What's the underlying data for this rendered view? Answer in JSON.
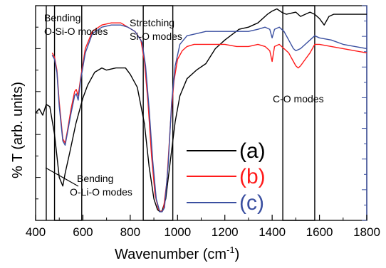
{
  "chart_data": {
    "type": "line",
    "xlabel": "Wavenumber (cm",
    "xlabel_sup": "-1",
    "xlabel_end": ")",
    "ylabel": "% T (arb. units)",
    "xlim": [
      400,
      1800
    ],
    "ylim": [
      0,
      100
    ],
    "x_ticks": [
      "400",
      "600",
      "800",
      "1000",
      "1200",
      "1400",
      "1600",
      "1800"
    ],
    "grid": false,
    "legend_placement": "center-right",
    "series": [
      {
        "name": "(a)",
        "color": "#000000",
        "points": [
          [
            400,
            50
          ],
          [
            415,
            52
          ],
          [
            430,
            49
          ],
          [
            445,
            54
          ],
          [
            460,
            53
          ],
          [
            480,
            40
          ],
          [
            500,
            20
          ],
          [
            515,
            16
          ],
          [
            525,
            22
          ],
          [
            545,
            32
          ],
          [
            570,
            45
          ],
          [
            600,
            57
          ],
          [
            620,
            63
          ],
          [
            650,
            69
          ],
          [
            680,
            71
          ],
          [
            700,
            70
          ],
          [
            740,
            71
          ],
          [
            780,
            71
          ],
          [
            800,
            68
          ],
          [
            830,
            62
          ],
          [
            860,
            45
          ],
          [
            880,
            25
          ],
          [
            900,
            10
          ],
          [
            915,
            5
          ],
          [
            925,
            4
          ],
          [
            935,
            4.5
          ],
          [
            950,
            10
          ],
          [
            970,
            28
          ],
          [
            990,
            46
          ],
          [
            1010,
            58
          ],
          [
            1040,
            66
          ],
          [
            1080,
            70
          ],
          [
            1120,
            73
          ],
          [
            1160,
            80
          ],
          [
            1200,
            84
          ],
          [
            1260,
            89
          ],
          [
            1300,
            90
          ],
          [
            1340,
            92
          ],
          [
            1380,
            96
          ],
          [
            1400,
            97.5
          ],
          [
            1420,
            98.5
          ],
          [
            1440,
            97
          ],
          [
            1460,
            96
          ],
          [
            1480,
            96.5
          ],
          [
            1500,
            97
          ],
          [
            1520,
            95
          ],
          [
            1540,
            96
          ],
          [
            1560,
            97
          ],
          [
            1580,
            96
          ],
          [
            1600,
            94
          ],
          [
            1620,
            91
          ],
          [
            1640,
            95
          ],
          [
            1660,
            96
          ],
          [
            1700,
            96
          ],
          [
            1750,
            96
          ],
          [
            1800,
            96
          ]
        ]
      },
      {
        "name": "(b)",
        "color": "#ff1a1a",
        "points": [
          [
            470,
            78
          ],
          [
            480,
            76
          ],
          [
            490,
            70
          ],
          [
            500,
            55
          ],
          [
            515,
            38
          ],
          [
            525,
            36
          ],
          [
            535,
            42
          ],
          [
            550,
            52
          ],
          [
            565,
            60
          ],
          [
            572,
            61
          ],
          [
            580,
            58
          ],
          [
            590,
            66
          ],
          [
            610,
            80
          ],
          [
            640,
            88
          ],
          [
            680,
            91
          ],
          [
            720,
            92
          ],
          [
            760,
            92
          ],
          [
            790,
            90
          ],
          [
            820,
            88
          ],
          [
            845,
            84
          ],
          [
            860,
            74
          ],
          [
            875,
            55
          ],
          [
            890,
            30
          ],
          [
            905,
            12
          ],
          [
            920,
            5
          ],
          [
            930,
            4
          ],
          [
            940,
            5
          ],
          [
            955,
            18
          ],
          [
            970,
            45
          ],
          [
            985,
            65
          ],
          [
            1000,
            75
          ],
          [
            1020,
            79
          ],
          [
            1040,
            81
          ],
          [
            1070,
            82
          ],
          [
            1100,
            82
          ],
          [
            1150,
            82
          ],
          [
            1200,
            82
          ],
          [
            1250,
            81
          ],
          [
            1300,
            81
          ],
          [
            1340,
            82
          ],
          [
            1370,
            81
          ],
          [
            1390,
            79
          ],
          [
            1400,
            74
          ],
          [
            1410,
            81
          ],
          [
            1430,
            82
          ],
          [
            1450,
            80
          ],
          [
            1470,
            78
          ],
          [
            1490,
            74
          ],
          [
            1500,
            72
          ],
          [
            1510,
            71
          ],
          [
            1520,
            72
          ],
          [
            1540,
            75
          ],
          [
            1560,
            78
          ],
          [
            1580,
            82
          ],
          [
            1600,
            82
          ],
          [
            1650,
            81
          ],
          [
            1700,
            80
          ],
          [
            1750,
            79
          ],
          [
            1800,
            78
          ]
        ]
      },
      {
        "name": "(c)",
        "color": "#3a4fa0",
        "points": [
          [
            470,
            77
          ],
          [
            480,
            75
          ],
          [
            490,
            69
          ],
          [
            500,
            53
          ],
          [
            515,
            37
          ],
          [
            525,
            35
          ],
          [
            535,
            41
          ],
          [
            550,
            50
          ],
          [
            565,
            58
          ],
          [
            572,
            59
          ],
          [
            580,
            56
          ],
          [
            590,
            65
          ],
          [
            610,
            78
          ],
          [
            640,
            87
          ],
          [
            680,
            90
          ],
          [
            720,
            91
          ],
          [
            760,
            91
          ],
          [
            790,
            90
          ],
          [
            820,
            88
          ],
          [
            850,
            83
          ],
          [
            865,
            72
          ],
          [
            880,
            52
          ],
          [
            895,
            28
          ],
          [
            910,
            10
          ],
          [
            925,
            4
          ],
          [
            935,
            4
          ],
          [
            945,
            6
          ],
          [
            960,
            25
          ],
          [
            975,
            55
          ],
          [
            990,
            72
          ],
          [
            1010,
            82
          ],
          [
            1040,
            86
          ],
          [
            1080,
            87
          ],
          [
            1120,
            88
          ],
          [
            1160,
            88
          ],
          [
            1200,
            88
          ],
          [
            1250,
            88
          ],
          [
            1300,
            88
          ],
          [
            1340,
            89
          ],
          [
            1370,
            90
          ],
          [
            1390,
            89
          ],
          [
            1400,
            85
          ],
          [
            1410,
            89
          ],
          [
            1430,
            90
          ],
          [
            1450,
            88
          ],
          [
            1470,
            84
          ],
          [
            1490,
            80
          ],
          [
            1500,
            79
          ],
          [
            1520,
            80
          ],
          [
            1540,
            82
          ],
          [
            1560,
            84
          ],
          [
            1580,
            86
          ],
          [
            1600,
            85
          ],
          [
            1650,
            84
          ],
          [
            1700,
            82
          ],
          [
            1750,
            81
          ],
          [
            1800,
            80
          ]
        ]
      }
    ],
    "annotations": [
      {
        "id": "bending-osio",
        "lines": [
          "Bending",
          "O-Si-O modes"
        ]
      },
      {
        "id": "stretching-sio",
        "lines": [
          "Stretching",
          "Si-O modes"
        ]
      },
      {
        "id": "co-modes",
        "lines": [
          "C-O modes"
        ]
      },
      {
        "id": "bending-olio",
        "lines": [
          "Bending",
          "O-Li-O modes"
        ]
      }
    ],
    "highlight_boxes": [
      {
        "x_from": 480,
        "x_to": 595
      },
      {
        "x_from": 855,
        "x_to": 980
      },
      {
        "x_from": 1445,
        "x_to": 1580
      }
    ],
    "vertical_lines": [
      445
    ]
  }
}
